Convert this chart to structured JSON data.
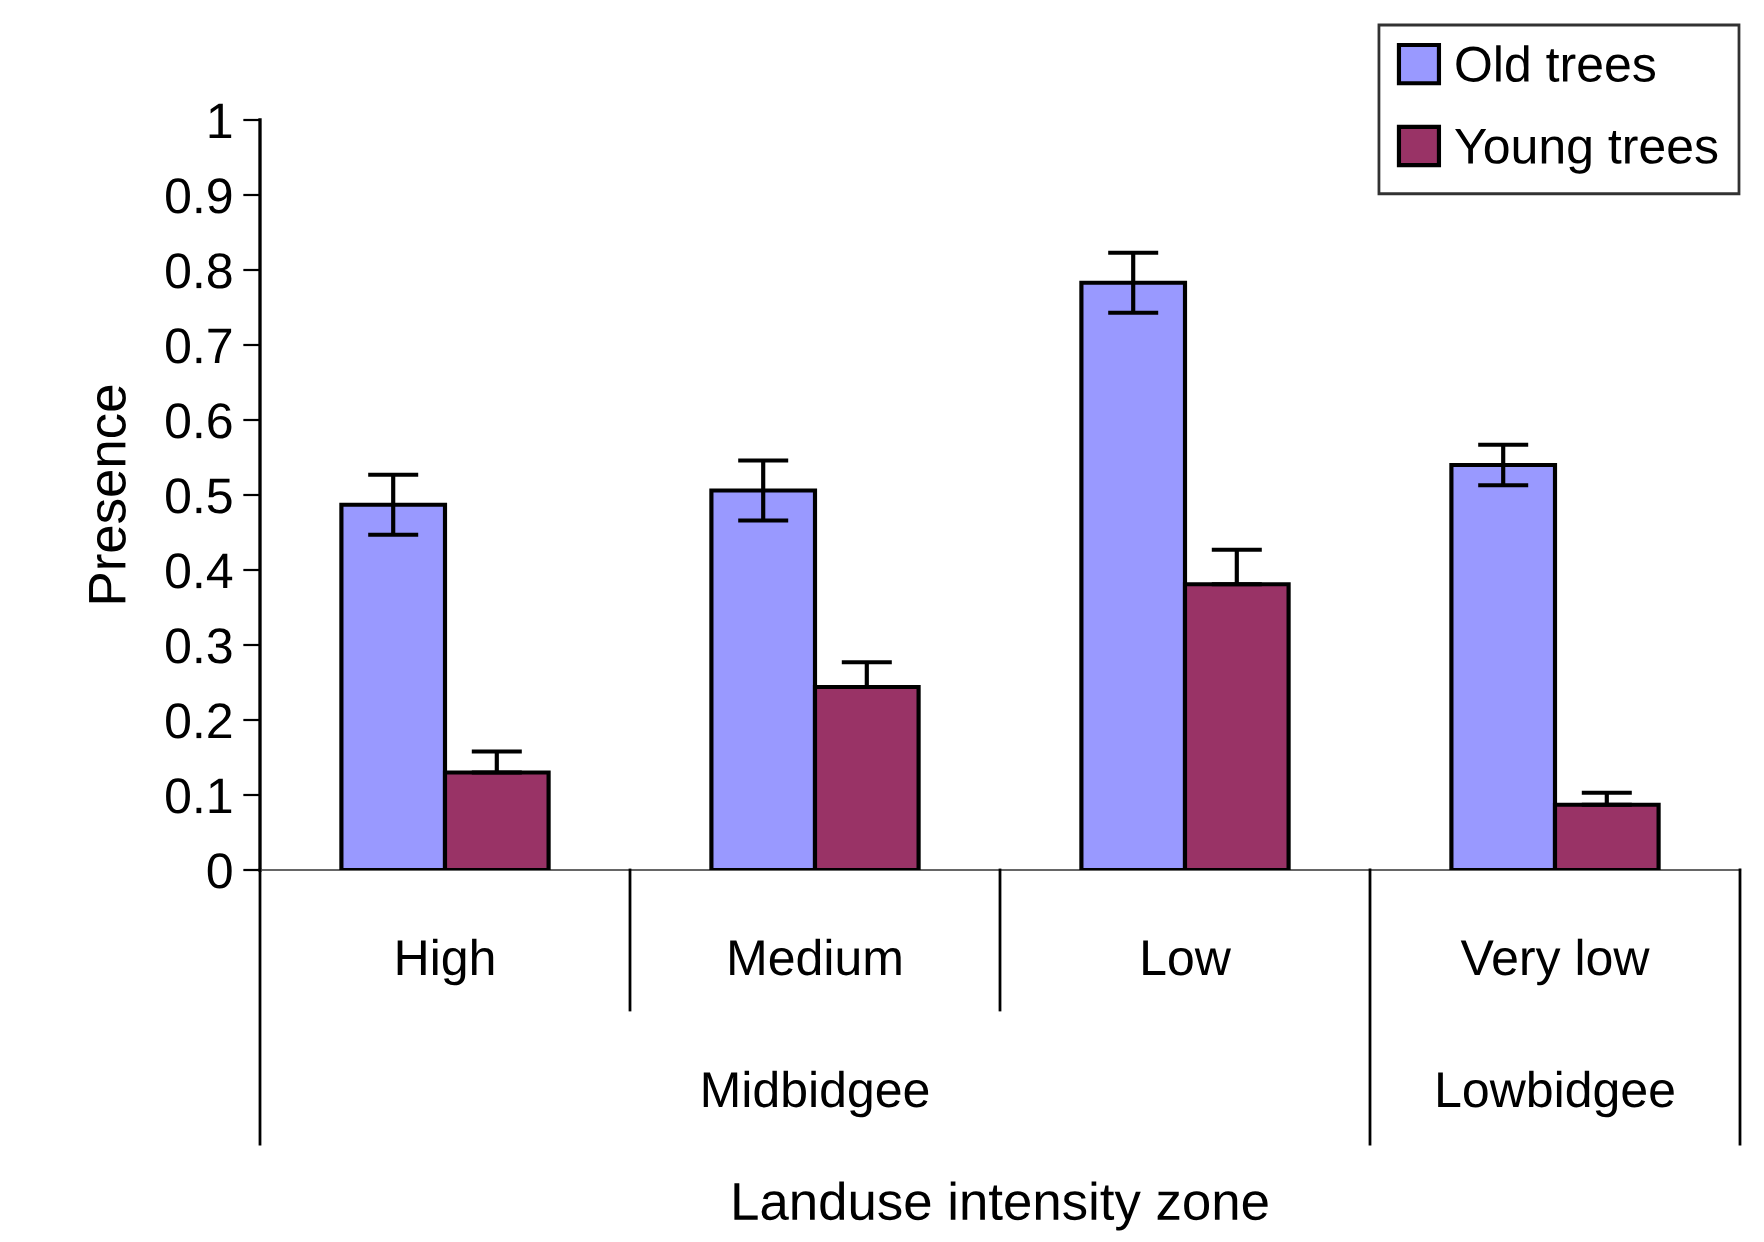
{
  "chart_data": {
    "type": "bar",
    "xlabel": "Landuse intensity zone",
    "ylabel": "Presence",
    "categories": [
      "High",
      "Medium",
      "Low",
      "Very low"
    ],
    "series": [
      {
        "name": "Old trees",
        "color": "#9999ff",
        "values": [
          0.487,
          0.506,
          0.783,
          0.54
        ],
        "errors": [
          0.04,
          0.04,
          0.04,
          0.027
        ]
      },
      {
        "name": "Young trees",
        "color": "#993366",
        "values": [
          0.13,
          0.244,
          0.381,
          0.087
        ],
        "errors": [
          [
            0.13,
            0.158
          ],
          [
            0.244,
            0.277
          ],
          [
            0.381,
            0.427
          ],
          [
            0.087,
            0.103
          ]
        ]
      }
    ],
    "annotations": [
      "Midbidgee",
      "Lowbidgee"
    ],
    "ylim": [
      0,
      1
    ],
    "yticks": [
      0,
      0.1,
      0.2,
      0.3,
      0.4,
      0.5,
      0.6,
      0.7,
      0.8,
      0.9,
      1
    ],
    "grid": false,
    "legend": "top right"
  }
}
